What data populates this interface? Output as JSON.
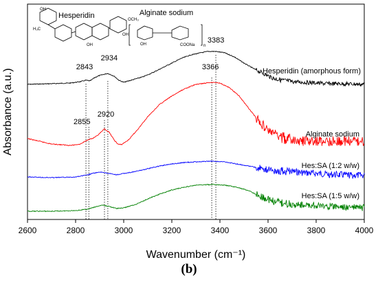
{
  "chart_data": {
    "type": "line",
    "caption": "(b)",
    "xlabel": "Wavenumber (cm⁻¹)",
    "ylabel": "Absorbance (a.u.)",
    "xlim": [
      2600,
      4000
    ],
    "x_ticks": [
      2600,
      2800,
      3000,
      3200,
      3400,
      3600,
      3800,
      4000
    ],
    "grid": false,
    "series": [
      {
        "name": "Hesperidin (amorphous form)",
        "color": "#000000",
        "points": [
          [
            2600,
            123
          ],
          [
            2700,
            122
          ],
          [
            2780,
            121
          ],
          [
            2820,
            119
          ],
          [
            2843,
            117
          ],
          [
            2860,
            118
          ],
          [
            2880,
            113
          ],
          [
            2900,
            110
          ],
          [
            2934,
            107
          ],
          [
            2960,
            111
          ],
          [
            2980,
            117
          ],
          [
            3000,
            120
          ],
          [
            3040,
            116
          ],
          [
            3080,
            112
          ],
          [
            3120,
            106
          ],
          [
            3160,
            99
          ],
          [
            3200,
            92
          ],
          [
            3240,
            85
          ],
          [
            3280,
            80
          ],
          [
            3320,
            77
          ],
          [
            3350,
            75
          ],
          [
            3383,
            75
          ],
          [
            3420,
            77
          ],
          [
            3460,
            83
          ],
          [
            3500,
            92
          ],
          [
            3540,
            100
          ],
          [
            3580,
            107
          ],
          [
            3620,
            114
          ],
          [
            3660,
            117
          ],
          [
            3700,
            119
          ],
          [
            3750,
            120
          ],
          [
            3800,
            121
          ],
          [
            3850,
            122
          ],
          [
            3900,
            122
          ],
          [
            4000,
            123
          ]
        ]
      },
      {
        "name": "Alginate sodium",
        "color": "#ff0000",
        "points": [
          [
            2600,
            202
          ],
          [
            2700,
            210
          ],
          [
            2780,
            212
          ],
          [
            2820,
            210
          ],
          [
            2850,
            204
          ],
          [
            2855,
            203
          ],
          [
            2870,
            202
          ],
          [
            2890,
            198
          ],
          [
            2920,
            188
          ],
          [
            2940,
            193
          ],
          [
            2960,
            204
          ],
          [
            2975,
            210
          ],
          [
            2990,
            211
          ],
          [
            3020,
            204
          ],
          [
            3060,
            188
          ],
          [
            3100,
            170
          ],
          [
            3150,
            152
          ],
          [
            3200,
            140
          ],
          [
            3250,
            130
          ],
          [
            3300,
            123
          ],
          [
            3366,
            120
          ],
          [
            3400,
            121
          ],
          [
            3440,
            128
          ],
          [
            3480,
            140
          ],
          [
            3520,
            158
          ],
          [
            3560,
            176
          ],
          [
            3600,
            190
          ],
          [
            3640,
            198
          ],
          [
            3680,
            203
          ],
          [
            3720,
            206
          ],
          [
            3760,
            206
          ],
          [
            3800,
            206
          ],
          [
            3850,
            206
          ],
          [
            3900,
            206
          ],
          [
            4000,
            206
          ]
        ]
      },
      {
        "name": "Hes:SA (1:2 w/w)",
        "color": "#0000ff",
        "points": [
          [
            2600,
            258
          ],
          [
            2700,
            259
          ],
          [
            2800,
            258
          ],
          [
            2850,
            255
          ],
          [
            2880,
            252
          ],
          [
            2910,
            251
          ],
          [
            2940,
            253
          ],
          [
            2970,
            255
          ],
          [
            3000,
            253
          ],
          [
            3050,
            250
          ],
          [
            3100,
            246
          ],
          [
            3150,
            242
          ],
          [
            3200,
            239
          ],
          [
            3250,
            237
          ],
          [
            3300,
            236
          ],
          [
            3366,
            235
          ],
          [
            3420,
            236
          ],
          [
            3470,
            239
          ],
          [
            3520,
            242
          ],
          [
            3560,
            245
          ],
          [
            3600,
            247
          ],
          [
            3650,
            249
          ],
          [
            3700,
            250
          ],
          [
            3750,
            252
          ],
          [
            3800,
            253
          ],
          [
            3850,
            254
          ],
          [
            3900,
            255
          ],
          [
            4000,
            256
          ]
        ]
      },
      {
        "name": "Hes:SA (1:5 w/w)",
        "color": "#008000",
        "points": [
          [
            2600,
            308
          ],
          [
            2700,
            308
          ],
          [
            2800,
            307
          ],
          [
            2850,
            305
          ],
          [
            2880,
            302
          ],
          [
            2910,
            299
          ],
          [
            2940,
            301
          ],
          [
            2970,
            304
          ],
          [
            3000,
            303
          ],
          [
            3050,
            298
          ],
          [
            3100,
            290
          ],
          [
            3150,
            283
          ],
          [
            3200,
            277
          ],
          [
            3250,
            273
          ],
          [
            3300,
            270
          ],
          [
            3366,
            269
          ],
          [
            3420,
            270
          ],
          [
            3470,
            273
          ],
          [
            3520,
            278
          ],
          [
            3560,
            285
          ],
          [
            3600,
            291
          ],
          [
            3640,
            295
          ],
          [
            3700,
            298
          ],
          [
            3750,
            299
          ],
          [
            3800,
            300
          ],
          [
            3850,
            301
          ],
          [
            3900,
            302
          ],
          [
            4000,
            303
          ]
        ]
      }
    ],
    "peak_labels": [
      {
        "text": "2843",
        "x": 2843
      },
      {
        "text": "2934",
        "x": 2934
      },
      {
        "text": "3383",
        "x": 3383
      },
      {
        "text": "3366",
        "x": 3366
      },
      {
        "text": "2855",
        "x": 2855
      },
      {
        "text": "2920",
        "x": 2920
      }
    ],
    "reference_lines_x": [
      2843,
      2855,
      2920,
      2934,
      3366,
      3383
    ],
    "series_labels": [
      "Hesperidin (amorphous form)",
      "Alginate sodium",
      "Hes:SA (1:2 w/w)",
      "Hes:SA (1:5 w/w)"
    ],
    "inset": {
      "hesperidin_label": "Hesperidin",
      "alginate_label": "Alginate sodium",
      "group_labels": [
        "OCH₃",
        "OH",
        "H₃C",
        "OH",
        "OH",
        "OH",
        "COONa",
        "n"
      ]
    }
  }
}
